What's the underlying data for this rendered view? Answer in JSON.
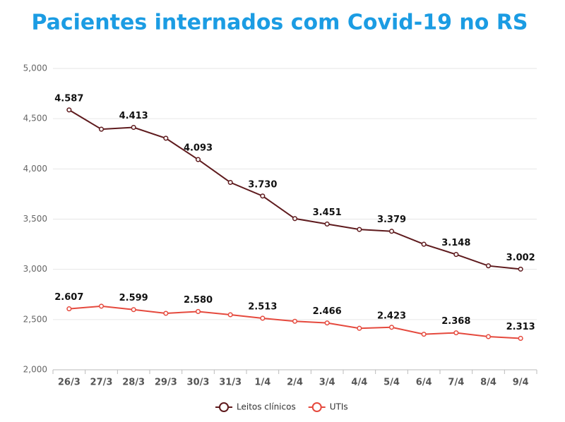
{
  "chart_data": {
    "type": "line",
    "title": "Pacientes internados com Covid-19 no RS",
    "categories": [
      "26/3",
      "27/3",
      "28/3",
      "29/3",
      "30/3",
      "31/3",
      "1/4",
      "2/4",
      "3/4",
      "4/4",
      "5/4",
      "6/4",
      "7/4",
      "8/4",
      "9/4"
    ],
    "series": [
      {
        "name": "Leitos clínicos",
        "color": "#5e1a1d",
        "values": [
          4587,
          4395,
          4413,
          4305,
          4093,
          3865,
          3730,
          3505,
          3451,
          3397,
          3379,
          3250,
          3148,
          3035,
          3002
        ],
        "value_labels": [
          "4.587",
          null,
          "4.413",
          null,
          "4.093",
          null,
          "3.730",
          null,
          "3.451",
          null,
          "3.379",
          null,
          "3.148",
          null,
          "3.002"
        ]
      },
      {
        "name": "UTIs",
        "color": "#e5493d",
        "values": [
          2607,
          2633,
          2599,
          2562,
          2580,
          2548,
          2513,
          2483,
          2466,
          2413,
          2423,
          2354,
          2368,
          2330,
          2313
        ],
        "value_labels": [
          "2.607",
          null,
          "2.599",
          null,
          "2.580",
          null,
          "2.513",
          null,
          "2.466",
          null,
          "2.423",
          null,
          "2.368",
          null,
          "2.313"
        ]
      }
    ],
    "ylim": [
      2000,
      5000
    ],
    "yticks": [
      {
        "value": 2000,
        "label": "2,000"
      },
      {
        "value": 2500,
        "label": "2,500"
      },
      {
        "value": 3000,
        "label": "3,000"
      },
      {
        "value": 3500,
        "label": "3,500"
      },
      {
        "value": 4000,
        "label": "4,000"
      },
      {
        "value": 4500,
        "label": "4,500"
      },
      {
        "value": 5000,
        "label": "5,000"
      }
    ],
    "grid": true
  }
}
